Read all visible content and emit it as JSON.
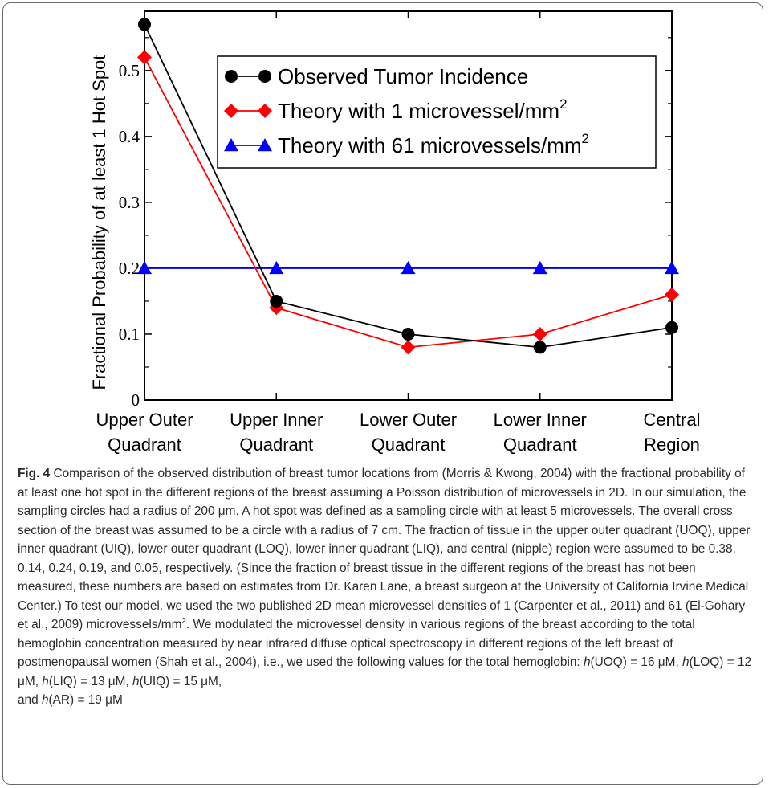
{
  "chart_data": {
    "type": "line",
    "categories": [
      [
        "Upper Outer",
        "Quadrant"
      ],
      [
        "Upper Inner",
        "Quadrant"
      ],
      [
        "Lower Outer",
        "Quadrant"
      ],
      [
        "Lower Inner",
        "Quadrant"
      ],
      [
        "Central",
        "Region"
      ]
    ],
    "ylabel": "Fractional Probability of at least 1 Hot Spot",
    "ylim": [
      0,
      0.59
    ],
    "yticks": [
      0,
      0.1,
      0.2,
      0.3,
      0.4,
      0.5
    ],
    "ytick_labels": [
      "0",
      "0.1",
      "0.2",
      "0.3",
      "0.4",
      "0.5"
    ],
    "legend_position": "top-right",
    "series": [
      {
        "name": "Observed Tumor Incidence",
        "name_sup": "",
        "marker": "circle",
        "color": "#000000",
        "values": [
          0.57,
          0.15,
          0.1,
          0.08,
          0.11
        ]
      },
      {
        "name": "Theory with 1 microvessel/mm",
        "name_sup": "2",
        "marker": "diamond",
        "color": "#ff0000",
        "values": [
          0.52,
          0.14,
          0.08,
          0.1,
          0.16
        ]
      },
      {
        "name": "Theory with 61 microvessels/mm",
        "name_sup": "2",
        "marker": "triangle",
        "color": "#0000ff",
        "values": [
          0.2,
          0.2,
          0.2,
          0.2,
          0.2
        ]
      }
    ]
  },
  "caption": {
    "label": "Fig. 4",
    "part1": " Comparison of the observed distribution of breast tumor locations from (Morris & Kwong, 2004) with the fractional probability of at least one hot spot in the different regions of the breast assuming a Poisson distribution of microvessels in 2D. In our simulation, the sampling circles had a radius of 200 μm. A hot spot was defined as a sampling circle with at least 5 microvessels. The overall cross section of the breast was assumed to be a circle with a radius of 7 cm. The fraction of tissue in the upper outer quadrant (UOQ), upper inner quadrant (UIQ), lower outer quadrant (LOQ), lower inner quadrant (LIQ), and central (nipple) region were assumed to be 0.38, 0.14, 0.24, 0.19, and 0.05, respectively. (Since the fraction of breast tissue in the different regions of the breast has not been measured, these numbers are based on estimates from Dr. Karen Lane, a breast surgeon at the University of California Irvine Medical Center.) To test our model, we used the two published 2D mean microvessel densities of 1 (Carpenter et al., 2011) and 61 (El-Gohary et al., 2009) microvessels/mm",
    "sup": "2",
    "part2": ". We modulated the microvessel density in various regions of the breast according to the total hemoglobin concentration measured by near infrared diffuse optical spectroscopy in different regions of the left breast of postmenopausal women (Shah et al., 2004), i.e., we used the following values for the total hemoglobin: ",
    "h_values": [
      {
        "fn": "h",
        "arg": "(UOQ) = 16 μM, "
      },
      {
        "fn": "h",
        "arg": "(LOQ) = 12 μM, "
      },
      {
        "fn": "h",
        "arg": "(LIQ) = 13 μM, "
      },
      {
        "fn": "h",
        "arg": "(UIQ) = 15 μM,"
      }
    ],
    "last_prefix": "and ",
    "last_fn": "h",
    "last_arg": "(AR) = 19 μM"
  }
}
